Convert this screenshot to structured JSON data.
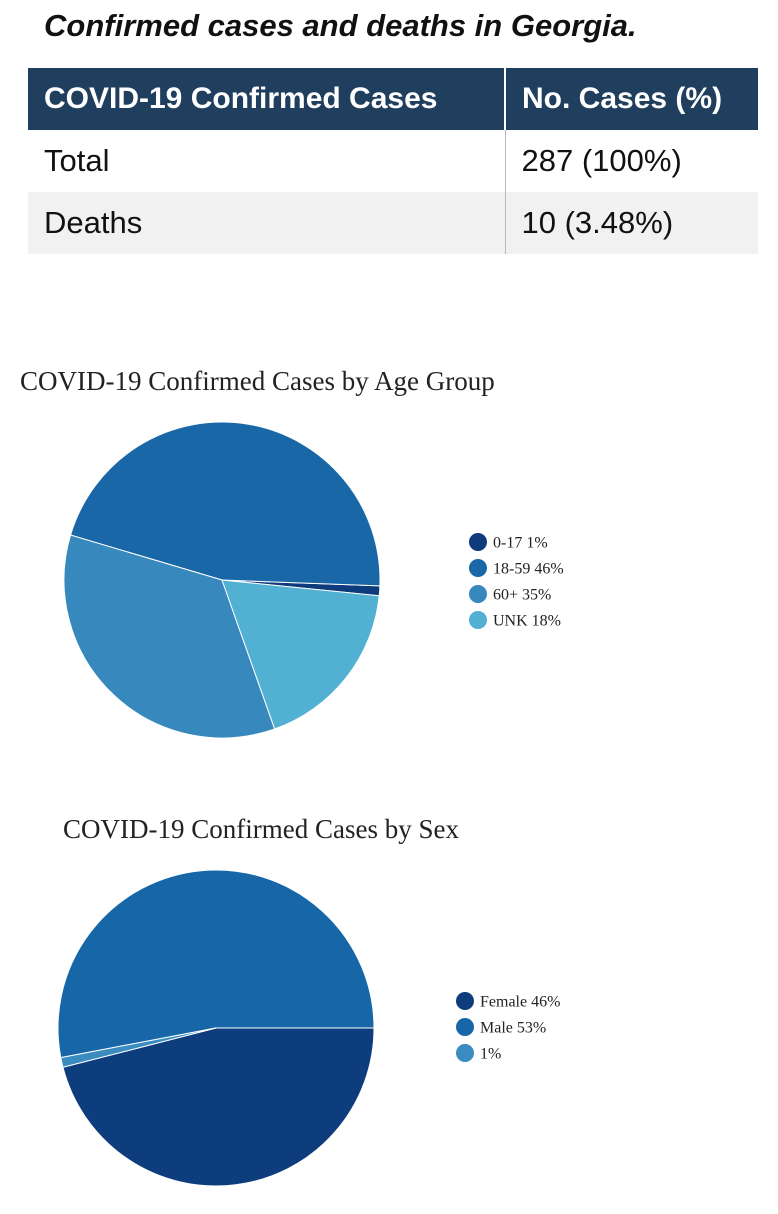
{
  "caption": "Confirmed cases and deaths in Georgia.",
  "table": {
    "headers": [
      "COVID-19 Confirmed Cases",
      "No. Cases (%)"
    ],
    "rows": [
      {
        "label": "Total",
        "value": "287 (100%)"
      },
      {
        "label": "Deaths",
        "value": "10 (3.48%)"
      }
    ]
  },
  "chart_data": [
    {
      "type": "pie",
      "title": "COVID-19 Confirmed Cases by Age Group",
      "legend_position": "right",
      "slices": [
        {
          "label": "0-17 1%",
          "value": 1,
          "color": "#0d3b7b"
        },
        {
          "label": "18-59 46%",
          "value": 46,
          "color": "#1a67a7"
        },
        {
          "label": "60+ 35%",
          "value": 35,
          "color": "#3688bd"
        },
        {
          "label": "UNK 18%",
          "value": 18,
          "color": "#52b0d2"
        }
      ]
    },
    {
      "type": "pie",
      "title": "COVID-19 Confirmed Cases by Sex",
      "legend_position": "right",
      "slices": [
        {
          "label": "Female 46%",
          "value": 46,
          "color": "#0e3d7d"
        },
        {
          "label": "Male 53%",
          "value": 53,
          "color": "#1767a8"
        },
        {
          "label": "1%",
          "value": 1,
          "color": "#3a8cc0"
        }
      ]
    }
  ]
}
